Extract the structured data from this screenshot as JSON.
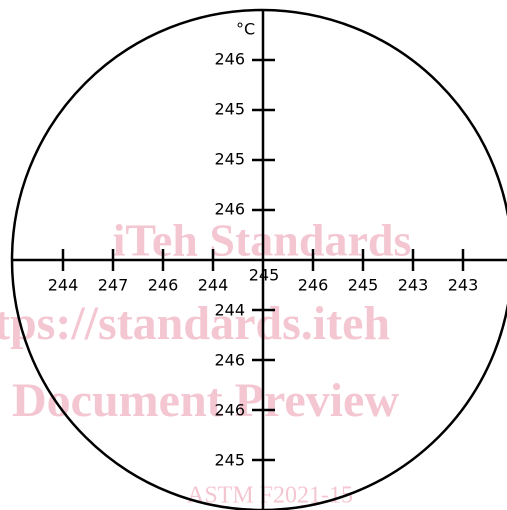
{
  "unit": "°C",
  "vertical_upper_labels": [
    "246",
    "245",
    "245",
    "246"
  ],
  "horizontal_labels": [
    "244",
    "247",
    "246",
    "244",
    "245",
    "246",
    "245",
    "243",
    "243"
  ],
  "vertical_lower_labels": [
    "244",
    "246",
    "246",
    "245"
  ],
  "watermark": [
    "iTeh Standards",
    "tps://standards.iteh",
    "Document Preview",
    "ASTM F2021-15"
  ]
}
